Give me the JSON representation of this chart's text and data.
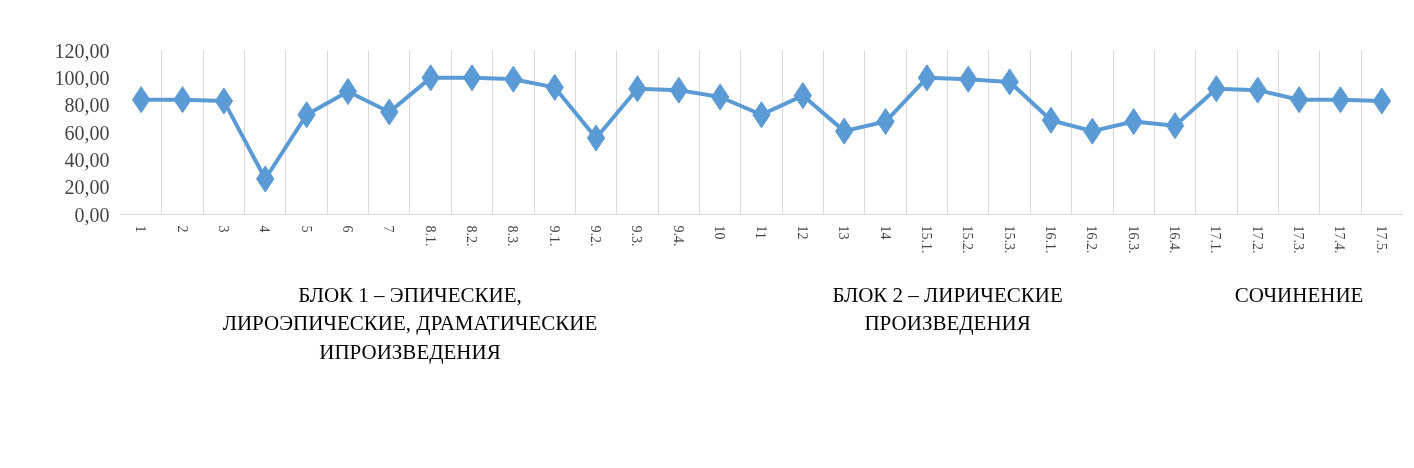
{
  "chart_data": {
    "type": "line",
    "categories": [
      "1",
      "2",
      "3",
      "4",
      "5",
      "6",
      "7",
      "8.1.",
      "8.2.",
      "8.3.",
      "9.1.",
      "9.2.",
      "9.3.",
      "9.4.",
      "10",
      "11",
      "12",
      "13",
      "14",
      "15.1.",
      "15.2.",
      "15.3.",
      "16.1.",
      "16.2.",
      "16.3.",
      "16.4.",
      "17.1.",
      "17.2.",
      "17.3.",
      "17.4.",
      "17.5."
    ],
    "series": [
      {
        "color": "#5b9bd5",
        "values": [
          84,
          84,
          83,
          26,
          73,
          90,
          75,
          100,
          100,
          99,
          93,
          56,
          92,
          91,
          86,
          73,
          87,
          61,
          68,
          100,
          99,
          97,
          69,
          61,
          68,
          65,
          92,
          91,
          84,
          84,
          83
        ]
      }
    ],
    "ylim": [
      0,
      120
    ],
    "yticks": [
      {
        "value": 0,
        "label": "0,00"
      },
      {
        "value": 20,
        "label": "20,00"
      },
      {
        "value": 40,
        "label": "40,00"
      },
      {
        "value": 60,
        "label": "60,00"
      },
      {
        "value": 80,
        "label": "80,00"
      },
      {
        "value": 100,
        "label": "100,00"
      },
      {
        "value": 120,
        "label": "120,00"
      }
    ],
    "grid": "x",
    "marker": "diamond",
    "line_style": "solid",
    "annotations": [
      "БЛОК 1 – ЭПИЧЕСКИЕ,\nЛИРОЭПИЧЕСКИЕ, ДРАМАТИЧЕСКИЕ\nИПРОИЗВЕДЕНИЯ",
      "БЛОК 2 – ЛИРИЧЕСКИЕ\nПРОИЗВЕДЕНИЯ",
      "СОЧИНЕНИЕ"
    ]
  }
}
